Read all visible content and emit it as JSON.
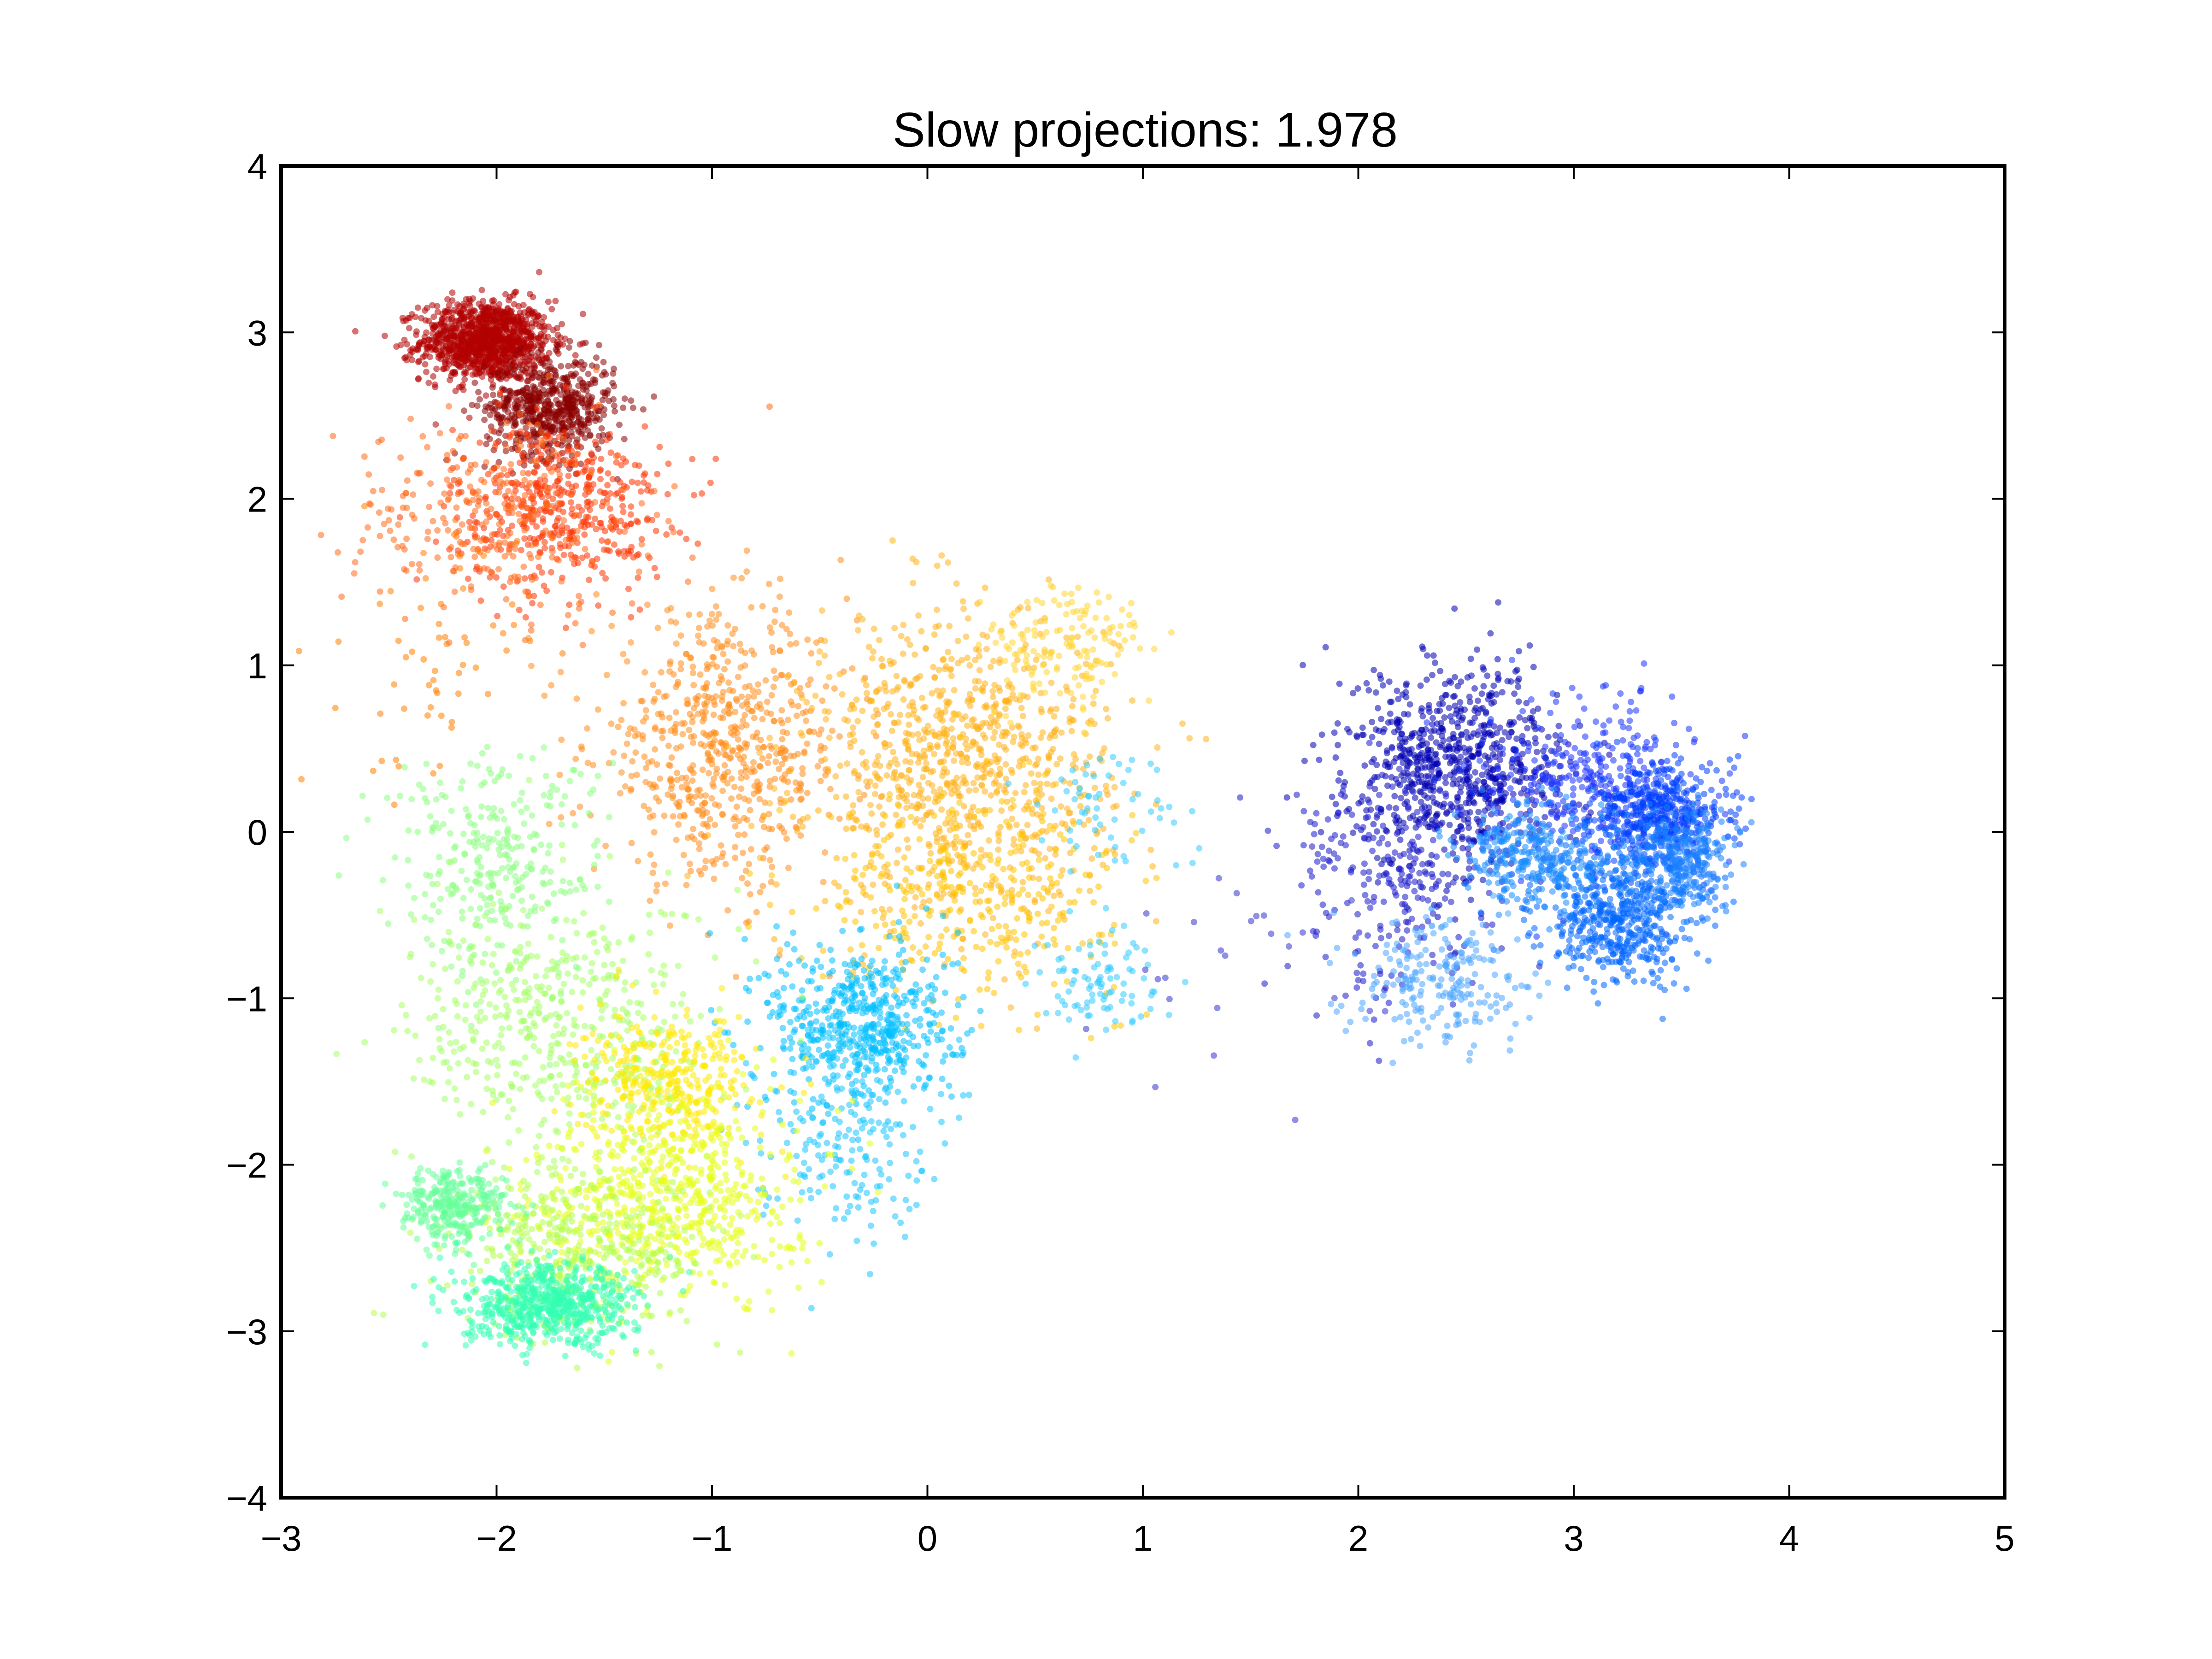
{
  "chart_data": {
    "type": "scatter",
    "title": "Slow projections: 1.978",
    "xlabel": "",
    "ylabel": "",
    "xlim": [
      -3,
      5
    ],
    "ylim": [
      -4,
      4
    ],
    "xticks": [
      -3,
      -2,
      -1,
      0,
      1,
      2,
      3,
      4,
      5
    ],
    "yticks": [
      -4,
      -3,
      -2,
      -1,
      0,
      1,
      2,
      3,
      4
    ],
    "xtick_labels": [
      "−3",
      "−2",
      "−1",
      "0",
      "1",
      "2",
      "3",
      "4",
      "5"
    ],
    "ytick_labels": [
      "−4",
      "−3",
      "−2",
      "−1",
      "0",
      "1",
      "2",
      "3",
      "4"
    ],
    "grid": false,
    "legend": "none",
    "colormap": "jet",
    "clusters": [
      {
        "cx": -2.05,
        "cy": 2.95,
        "sx": 0.15,
        "sy": 0.12,
        "n": 1100,
        "color": "#b30000"
      },
      {
        "cx": -1.75,
        "cy": 2.55,
        "sx": 0.15,
        "sy": 0.15,
        "n": 600,
        "color": "#8b0000"
      },
      {
        "cx": -1.7,
        "cy": 1.95,
        "sx": 0.25,
        "sy": 0.25,
        "n": 450,
        "color": "#ff3300"
      },
      {
        "cx": -2.0,
        "cy": 1.9,
        "sx": 0.35,
        "sy": 0.3,
        "n": 300,
        "color": "#ff6a1a"
      },
      {
        "cx": -2.3,
        "cy": 1.0,
        "sx": 0.2,
        "sy": 0.4,
        "n": 60,
        "color": "#ff7f00"
      },
      {
        "cx": -0.95,
        "cy": 0.5,
        "sx": 0.3,
        "sy": 0.4,
        "n": 650,
        "color": "#ff8c1a"
      },
      {
        "cx": 0.15,
        "cy": 0.4,
        "sx": 0.35,
        "sy": 0.45,
        "n": 900,
        "color": "#ffb31a"
      },
      {
        "cx": 0.65,
        "cy": 1.1,
        "sx": 0.2,
        "sy": 0.2,
        "n": 150,
        "color": "#ffd633"
      },
      {
        "cx": 0.2,
        "cy": -0.35,
        "sx": 0.35,
        "sy": 0.3,
        "n": 350,
        "color": "#ffc300"
      },
      {
        "cx": -0.3,
        "cy": -1.15,
        "sx": 0.22,
        "sy": 0.25,
        "n": 550,
        "color": "#00bfff"
      },
      {
        "cx": -0.4,
        "cy": -1.8,
        "sx": 0.2,
        "sy": 0.3,
        "n": 200,
        "color": "#1ac6ff"
      },
      {
        "cx": 0.8,
        "cy": -0.9,
        "sx": 0.15,
        "sy": 0.15,
        "n": 90,
        "color": "#33ccff"
      },
      {
        "cx": 0.8,
        "cy": 0.15,
        "sx": 0.2,
        "sy": 0.2,
        "n": 60,
        "color": "#33ccff"
      },
      {
        "cx": -2.0,
        "cy": -0.2,
        "sx": 0.25,
        "sy": 0.35,
        "n": 300,
        "color": "#8cff80"
      },
      {
        "cx": -1.7,
        "cy": -1.2,
        "sx": 0.35,
        "sy": 0.4,
        "n": 500,
        "color": "#a6ff66"
      },
      {
        "cx": -1.2,
        "cy": -1.5,
        "sx": 0.2,
        "sy": 0.2,
        "n": 350,
        "color": "#ffea00"
      },
      {
        "cx": -1.2,
        "cy": -2.2,
        "sx": 0.3,
        "sy": 0.3,
        "n": 650,
        "color": "#e6ff1a"
      },
      {
        "cx": -1.6,
        "cy": -2.5,
        "sx": 0.3,
        "sy": 0.25,
        "n": 400,
        "color": "#b3ff4d"
      },
      {
        "cx": -2.2,
        "cy": -2.25,
        "sx": 0.12,
        "sy": 0.12,
        "n": 300,
        "color": "#66ff99"
      },
      {
        "cx": -1.75,
        "cy": -2.85,
        "sx": 0.2,
        "sy": 0.12,
        "n": 650,
        "color": "#33ffb3"
      },
      {
        "cx": 2.45,
        "cy": 0.4,
        "sx": 0.25,
        "sy": 0.3,
        "n": 800,
        "color": "#0000b3"
      },
      {
        "cx": 2.2,
        "cy": -0.3,
        "sx": 0.25,
        "sy": 0.35,
        "n": 250,
        "color": "#1a1acc"
      },
      {
        "cx": 3.1,
        "cy": 0.3,
        "sx": 0.25,
        "sy": 0.25,
        "n": 350,
        "color": "#1a33ff"
      },
      {
        "cx": 3.4,
        "cy": 0.1,
        "sx": 0.15,
        "sy": 0.15,
        "n": 450,
        "color": "#0040ff"
      },
      {
        "cx": 3.2,
        "cy": -0.5,
        "sx": 0.18,
        "sy": 0.2,
        "n": 550,
        "color": "#0066ff"
      },
      {
        "cx": 2.8,
        "cy": -0.15,
        "sx": 0.18,
        "sy": 0.15,
        "n": 300,
        "color": "#1a8cff"
      },
      {
        "cx": 3.5,
        "cy": -0.15,
        "sx": 0.12,
        "sy": 0.15,
        "n": 300,
        "color": "#1a80ff"
      },
      {
        "cx": 2.4,
        "cy": -0.9,
        "sx": 0.2,
        "sy": 0.2,
        "n": 220,
        "color": "#4da6ff"
      },
      {
        "cx": 1.4,
        "cy": -0.8,
        "sx": 0.4,
        "sy": 0.3,
        "n": 25,
        "color": "#3333cc"
      }
    ]
  }
}
